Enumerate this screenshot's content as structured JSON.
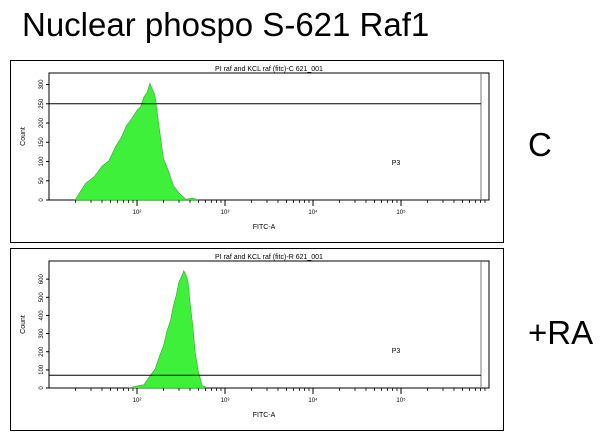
{
  "title": "Nuclear phospo S-621 Raf1",
  "colors": {
    "histogram_fill": "#3ff03a",
    "histogram_edge": "#1fb81a",
    "frame": "#000000"
  },
  "chart_data": [
    {
      "type": "area",
      "title": "PI raf and KCL raf (fitc)-C 621_001",
      "xlabel": "FITC-A",
      "ylabel": "Count",
      "xscale": "log",
      "xlim": [
        10,
        1000000
      ],
      "ylim": [
        0,
        330
      ],
      "x_ticks": [
        100,
        1000,
        10000,
        100000
      ],
      "x_tick_labels": [
        "10²",
        "10³",
        "10⁴",
        "10⁵"
      ],
      "y_ticks": [
        0,
        50,
        100,
        150,
        200,
        250,
        300
      ],
      "y_tick_labels": [
        "0",
        "50",
        "100",
        "150",
        "200",
        "250",
        "300"
      ],
      "gate_line_y": 250,
      "gate_label": "P3",
      "side_label": "C",
      "series": [
        {
          "x": [
            20,
            26,
            33,
            40,
            48,
            57,
            66,
            76,
            87,
            100,
            110,
            120,
            130,
            140,
            150,
            160,
            170,
            185,
            200,
            230,
            260,
            300,
            360,
            430,
            500
          ],
          "values": [
            5,
            40,
            65,
            85,
            105,
            135,
            165,
            190,
            215,
            230,
            245,
            265,
            282,
            300,
            290,
            268,
            228,
            160,
            110,
            70,
            40,
            15,
            5,
            2,
            0
          ]
        }
      ]
    },
    {
      "type": "area",
      "title": "PI raf and KCL raf (fitc)-R 621_001",
      "xlabel": "FITC-A",
      "ylabel": "Count",
      "xscale": "log",
      "xlim": [
        10,
        1000000
      ],
      "ylim": [
        0,
        700
      ],
      "x_ticks": [
        100,
        1000,
        10000,
        100000
      ],
      "x_tick_labels": [
        "10²",
        "10³",
        "10⁴",
        "10⁵"
      ],
      "y_ticks": [
        0,
        100,
        200,
        300,
        400,
        500,
        600
      ],
      "y_tick_labels": [
        "0",
        "100",
        "200",
        "300",
        "400",
        "500",
        "600"
      ],
      "gate_line_y": 70,
      "gate_label": "P3",
      "side_label": "+RA",
      "series": [
        {
          "x": [
            80,
            100,
            120,
            140,
            160,
            180,
            200,
            220,
            240,
            260,
            280,
            300,
            320,
            340,
            360,
            380,
            400,
            430,
            460,
            500,
            550,
            600
          ],
          "values": [
            0,
            5,
            25,
            60,
            110,
            170,
            240,
            310,
            380,
            450,
            520,
            580,
            620,
            640,
            630,
            580,
            480,
            340,
            200,
            80,
            20,
            0
          ]
        }
      ]
    }
  ]
}
